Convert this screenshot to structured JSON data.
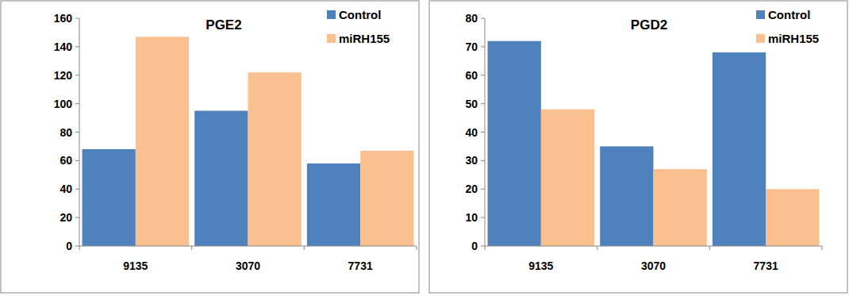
{
  "chart_data": [
    {
      "type": "bar",
      "title": "PGE2",
      "categories": [
        "9135",
        "3070",
        "7731"
      ],
      "series": [
        {
          "name": "Control",
          "color": "#4f81bd",
          "values": [
            68,
            95,
            58
          ]
        },
        {
          "name": "miRH155",
          "color": "#fac090",
          "values": [
            147,
            122,
            67
          ]
        }
      ],
      "ylim": [
        0,
        160
      ],
      "yticks": [
        0,
        20,
        40,
        60,
        80,
        100,
        120,
        140,
        160
      ],
      "grid": false,
      "legend": "top-right"
    },
    {
      "type": "bar",
      "title": "PGD2",
      "categories": [
        "9135",
        "3070",
        "7731"
      ],
      "series": [
        {
          "name": "Control",
          "color": "#4f81bd",
          "values": [
            72,
            35,
            68
          ]
        },
        {
          "name": "miRH155",
          "color": "#fac090",
          "values": [
            48,
            27,
            20
          ]
        }
      ],
      "ylim": [
        0,
        80
      ],
      "yticks": [
        0,
        10,
        20,
        30,
        40,
        50,
        60,
        70,
        80
      ],
      "grid": false,
      "legend": "top-right"
    }
  ]
}
